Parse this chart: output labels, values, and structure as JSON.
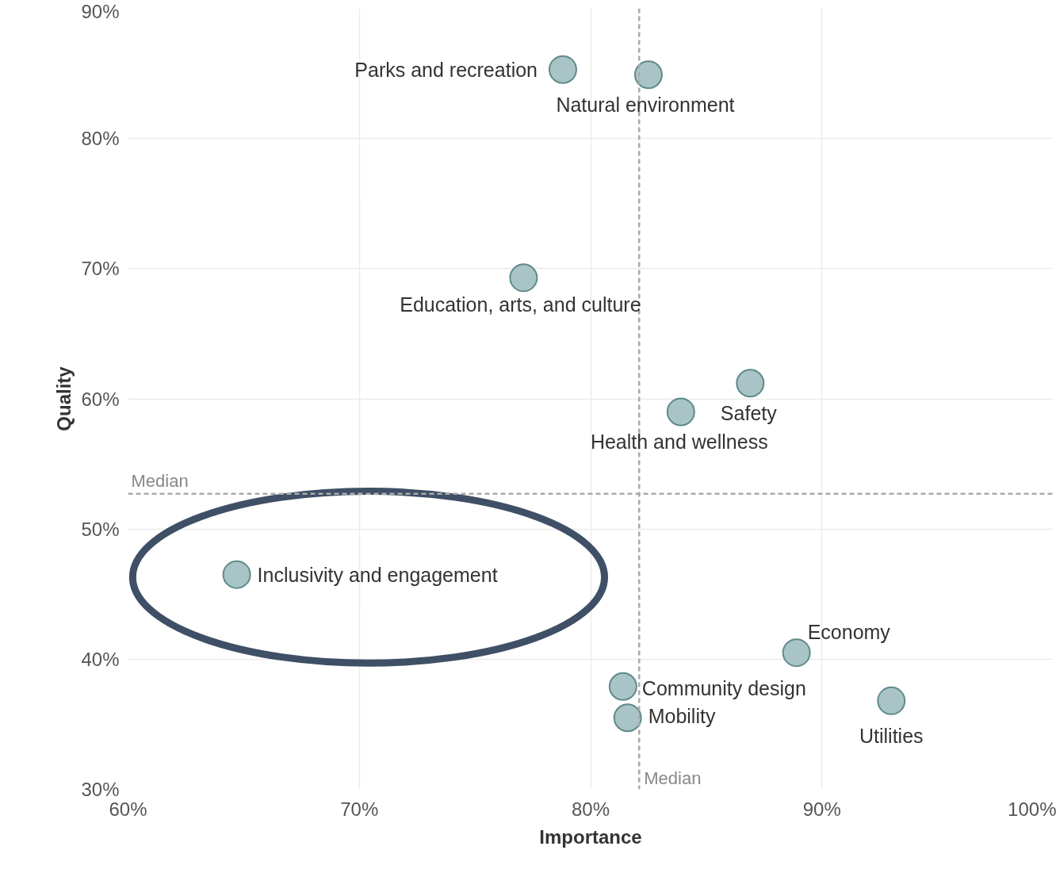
{
  "chart_data": {
    "type": "scatter",
    "xlabel": "Importance",
    "ylabel": "Quality",
    "xlim": [
      60,
      100
    ],
    "ylim": [
      30,
      90
    ],
    "xticks": [
      {
        "value": 60,
        "label": "60%"
      },
      {
        "value": 70,
        "label": "70%"
      },
      {
        "value": 80,
        "label": "80%"
      },
      {
        "value": 90,
        "label": "90%"
      },
      {
        "value": 100,
        "label": "100%"
      }
    ],
    "yticks": [
      {
        "value": 30,
        "label": "30%"
      },
      {
        "value": 40,
        "label": "40%"
      },
      {
        "value": 50,
        "label": "50%"
      },
      {
        "value": 60,
        "label": "60%"
      },
      {
        "value": 70,
        "label": "70%"
      },
      {
        "value": 80,
        "label": "80%"
      },
      {
        "value": 90,
        "label": "90%"
      }
    ],
    "grid": true,
    "legend": false,
    "marker": "circle",
    "ref_lines": [
      {
        "axis": "x",
        "value": 82.1,
        "label": "Median",
        "color": "#aaaaaa",
        "line_style": "dashed"
      },
      {
        "axis": "y",
        "value": 52.7,
        "label": "Median",
        "color": "#aaaaaa",
        "line_style": "dashed"
      }
    ],
    "series": [
      {
        "name": "Parks and recreation",
        "color": "#a9c4c6",
        "x": [
          78.8
        ],
        "values": [
          85.3
        ]
      },
      {
        "name": "Natural environment",
        "color": "#a9c4c6",
        "x": [
          82.5
        ],
        "values": [
          84.9
        ]
      },
      {
        "name": "Education, arts, and culture",
        "color": "#a9c4c6",
        "x": [
          77.1
        ],
        "values": [
          69.3
        ]
      },
      {
        "name": "Safety",
        "color": "#a9c4c6",
        "x": [
          86.9
        ],
        "values": [
          61.2
        ]
      },
      {
        "name": "Health and wellness",
        "color": "#a9c4c6",
        "x": [
          83.9
        ],
        "values": [
          59.0
        ]
      },
      {
        "name": "Inclusivity and engagement",
        "color": "#a9c4c6",
        "x": [
          64.7
        ],
        "values": [
          46.5
        ]
      },
      {
        "name": "Economy",
        "color": "#a9c4c6",
        "x": [
          88.9
        ],
        "values": [
          40.5
        ]
      },
      {
        "name": "Community design",
        "color": "#a9c4c6",
        "x": [
          81.4
        ],
        "values": [
          37.9
        ]
      },
      {
        "name": "Mobility",
        "color": "#a9c4c6",
        "x": [
          81.6
        ],
        "values": [
          35.5
        ]
      },
      {
        "name": "Utilities",
        "color": "#a9c4c6",
        "x": [
          93.0
        ],
        "values": [
          36.8
        ]
      }
    ]
  }
}
